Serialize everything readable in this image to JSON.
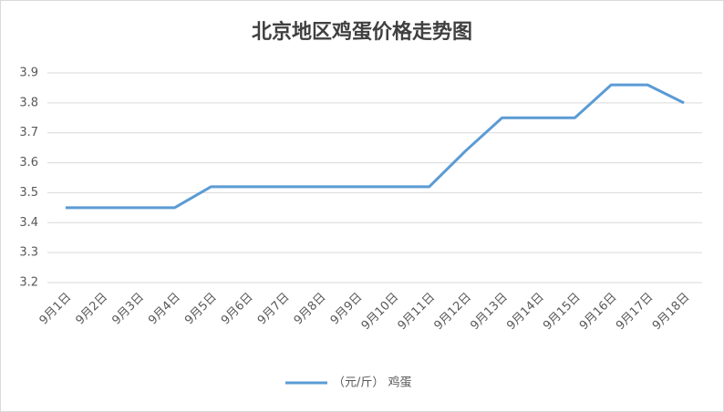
{
  "chart_data": {
    "type": "line",
    "title": "北京地区鸡蛋价格走势图",
    "categories": [
      "9月1日",
      "9月2日",
      "9月3日",
      "9月4日",
      "9月5日",
      "9月6日",
      "9月7日",
      "9月8日",
      "9月9日",
      "9月10日",
      "9月11日",
      "9月12日",
      "9月13日",
      "9月14日",
      "9月15日",
      "9月16日",
      "9月17日",
      "9月18日"
    ],
    "series": [
      {
        "name": "（元/斤） 鸡蛋",
        "color": "#5b9bd5",
        "values": [
          3.45,
          3.45,
          3.45,
          3.45,
          3.52,
          3.52,
          3.52,
          3.52,
          3.52,
          3.52,
          3.52,
          3.64,
          3.75,
          3.75,
          3.75,
          3.86,
          3.86,
          3.8
        ]
      }
    ],
    "ylim": [
      3.2,
      3.9
    ],
    "yticks": [
      3.2,
      3.3,
      3.4,
      3.5,
      3.6,
      3.7,
      3.8,
      3.9
    ],
    "grid": true,
    "legend": "bottom"
  }
}
